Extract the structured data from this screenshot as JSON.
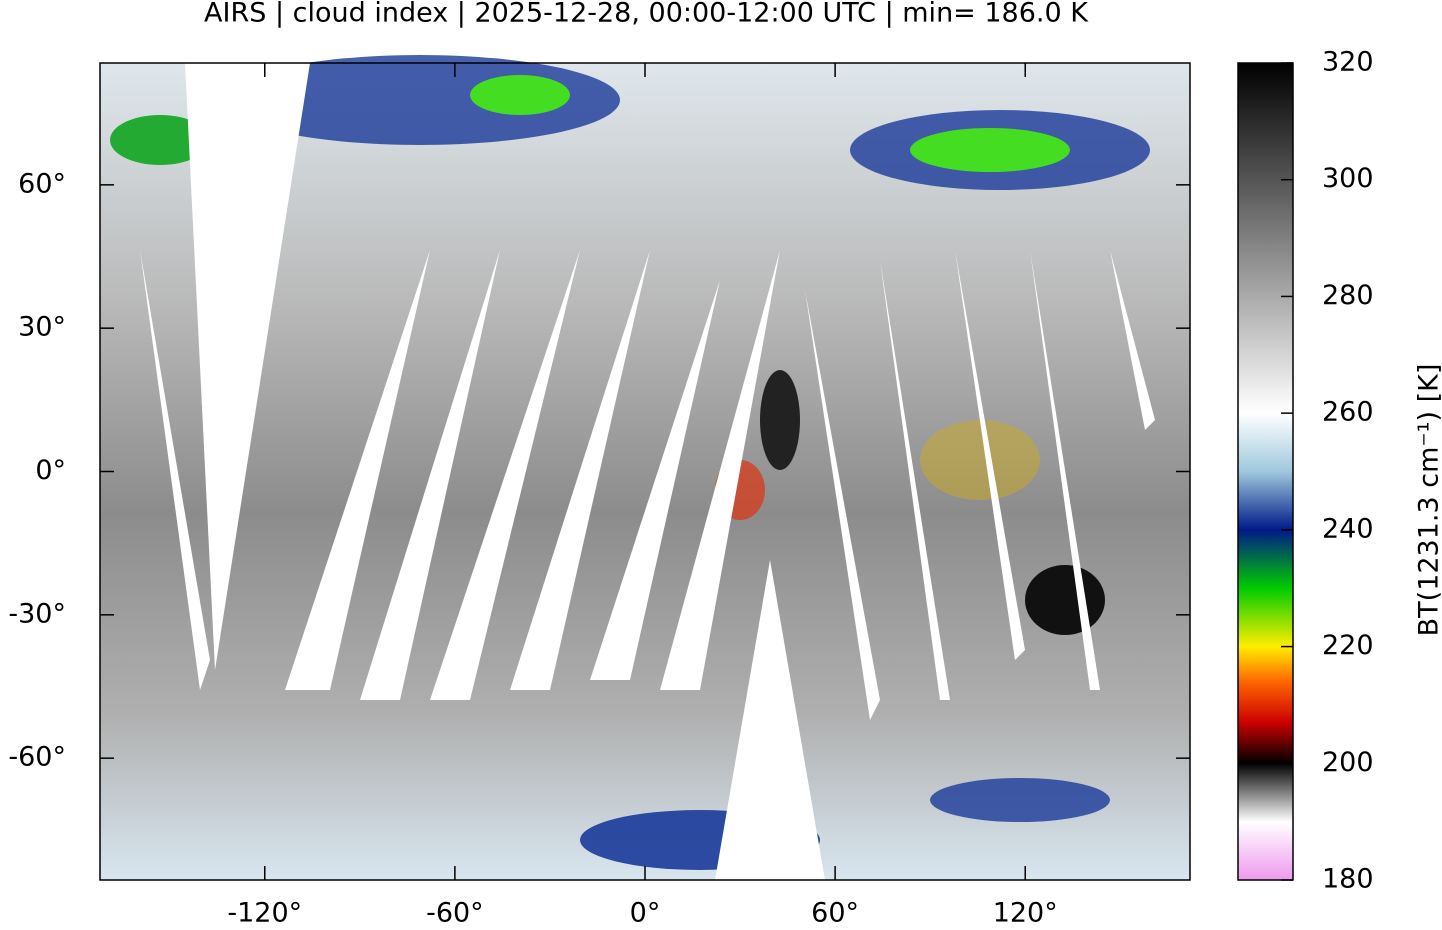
{
  "chart_data": {
    "type": "map",
    "title": "AIRS | cloud index | 2025-12-28, 00:00-12:00 UTC | min= 186.0 K",
    "xlim": [
      -172,
      172
    ],
    "ylim": [
      -85.5,
      85.5
    ],
    "xticks": [
      {
        "value": -120,
        "label": "-120°"
      },
      {
        "value": -60,
        "label": "-60°"
      },
      {
        "value": 0,
        "label": "0°"
      },
      {
        "value": 60,
        "label": "60°"
      },
      {
        "value": 120,
        "label": "120°"
      }
    ],
    "yticks": [
      {
        "value": -60,
        "label": "-60°"
      },
      {
        "value": -30,
        "label": "-30°"
      },
      {
        "value": 0,
        "label": "0°"
      },
      {
        "value": 30,
        "label": "30°"
      },
      {
        "value": 60,
        "label": "60°"
      }
    ],
    "colorbar": {
      "label": "BT(1231.3 cm⁻¹) [K]",
      "lim": [
        180,
        320
      ],
      "ticks": [
        180,
        200,
        220,
        240,
        260,
        280,
        300,
        320
      ],
      "colormap": [
        {
          "value": 180,
          "color": "#ee99ee"
        },
        {
          "value": 190,
          "color": "#ffffff"
        },
        {
          "value": 200,
          "color": "#000000"
        },
        {
          "value": 207,
          "color": "#cc0000"
        },
        {
          "value": 214,
          "color": "#ff6600"
        },
        {
          "value": 220,
          "color": "#ffee00"
        },
        {
          "value": 230,
          "color": "#00cc00"
        },
        {
          "value": 240,
          "color": "#001a88"
        },
        {
          "value": 250,
          "color": "#9fc8dd"
        },
        {
          "value": 260,
          "color": "#ffffff"
        },
        {
          "value": 320,
          "color": "#000000"
        }
      ]
    }
  }
}
